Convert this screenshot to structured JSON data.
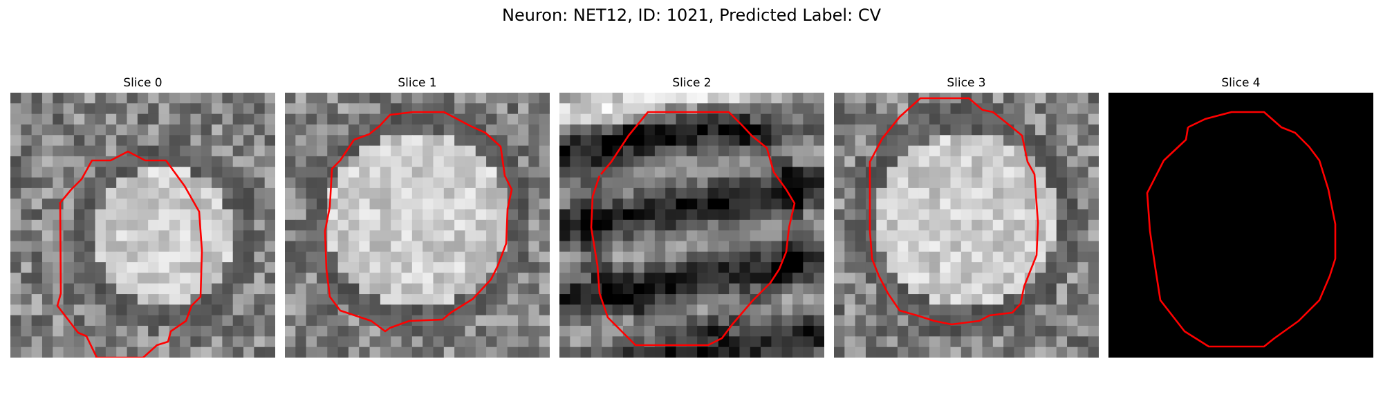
{
  "figure": {
    "title": "Neuron: NET12, ID: 1021, Predicted Label: CV"
  },
  "slices": [
    {
      "label": "Slice 0",
      "pattern": "nucleus-grainy",
      "outline_color": "#ff0000"
    },
    {
      "label": "Slice 1",
      "pattern": "nucleus-grainy",
      "outline_color": "#ff0000"
    },
    {
      "label": "Slice 2",
      "pattern": "streaky",
      "outline_color": "#ff0000"
    },
    {
      "label": "Slice 3",
      "pattern": "nucleus-grainy",
      "outline_color": "#ff0000"
    },
    {
      "label": "Slice 4",
      "pattern": "black",
      "outline_color": "#ff0000"
    }
  ]
}
